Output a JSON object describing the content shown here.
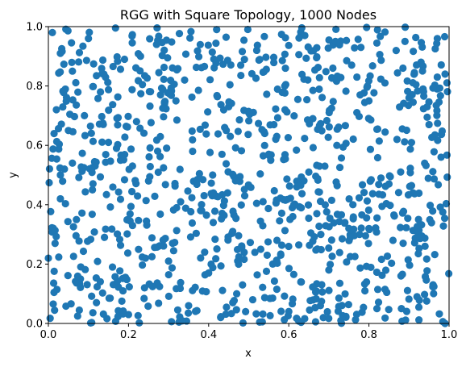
{
  "chart_data": {
    "type": "scatter",
    "title": "RGG with Square Topology, 1000 Nodes",
    "xlabel": "x",
    "ylabel": "y",
    "xlim": [
      0.0,
      1.0
    ],
    "ylim": [
      0.0,
      1.0
    ],
    "xticks": [
      "0.0",
      "0.2",
      "0.4",
      "0.6",
      "0.8",
      "1.0"
    ],
    "yticks": [
      "0.0",
      "0.2",
      "0.4",
      "0.6",
      "0.8",
      "1.0"
    ],
    "grid": false,
    "marker_color": "#1f77b4",
    "point_count": 1000,
    "sample_points": {
      "x": [
        0.01,
        0.03,
        0.06,
        0.1,
        0.13,
        0.19,
        0.27,
        0.34,
        0.42,
        0.48,
        0.52,
        0.59,
        0.64,
        0.71,
        0.78,
        0.84,
        0.89,
        0.93,
        0.97,
        0.99,
        0.02,
        0.05,
        0.09,
        0.15,
        0.22,
        0.29,
        0.36,
        0.44,
        0.5,
        0.57,
        0.66,
        0.72,
        0.8,
        0.87,
        0.95,
        0.04,
        0.11,
        0.18,
        0.25,
        0.33,
        0.41,
        0.49,
        0.55,
        0.62,
        0.69,
        0.76,
        0.83,
        0.91,
        0.98,
        0.07,
        0.14,
        0.21,
        0.31,
        0.38,
        0.46,
        0.53,
        0.61,
        0.68,
        0.74,
        0.86,
        0.0,
        0.08,
        0.16,
        0.24,
        0.3,
        0.4,
        0.47,
        0.56,
        0.63,
        0.7,
        0.79,
        0.88,
        0.96,
        0.12,
        0.2,
        0.35,
        0.43,
        0.51,
        0.6,
        0.73,
        0.82,
        0.92,
        0.99,
        0.03,
        0.17,
        0.28,
        0.39,
        0.54,
        0.67,
        0.77,
        0.85,
        0.94,
        0.06,
        0.23,
        0.32,
        0.45,
        0.58,
        0.65,
        0.75,
        0.9
      ],
      "y": [
        0.98,
        0.91,
        0.85,
        0.96,
        0.78,
        0.89,
        0.94,
        0.82,
        0.99,
        0.87,
        0.92,
        0.8,
        0.97,
        0.86,
        0.93,
        0.81,
        0.95,
        0.88,
        0.79,
        0.84,
        0.72,
        0.65,
        0.7,
        0.61,
        0.68,
        0.74,
        0.58,
        0.66,
        0.71,
        0.63,
        0.69,
        0.6,
        0.75,
        0.62,
        0.67,
        0.52,
        0.45,
        0.55,
        0.48,
        0.41,
        0.5,
        0.43,
        0.57,
        0.46,
        0.53,
        0.4,
        0.49,
        0.44,
        0.56,
        0.35,
        0.29,
        0.33,
        0.27,
        0.38,
        0.31,
        0.25,
        0.36,
        0.3,
        0.34,
        0.28,
        0.22,
        0.15,
        0.19,
        0.12,
        0.21,
        0.17,
        0.1,
        0.2,
        0.14,
        0.18,
        0.11,
        0.16,
        0.13,
        0.07,
        0.03,
        0.06,
        0.02,
        0.08,
        0.04,
        0.01,
        0.05,
        0.09,
        0.0,
        0.42,
        0.59,
        0.77,
        0.24,
        0.64,
        0.37,
        0.83,
        0.47,
        0.26,
        0.54,
        0.9,
        0.39,
        0.73,
        0.23,
        0.51,
        0.32,
        0.76
      ]
    }
  }
}
